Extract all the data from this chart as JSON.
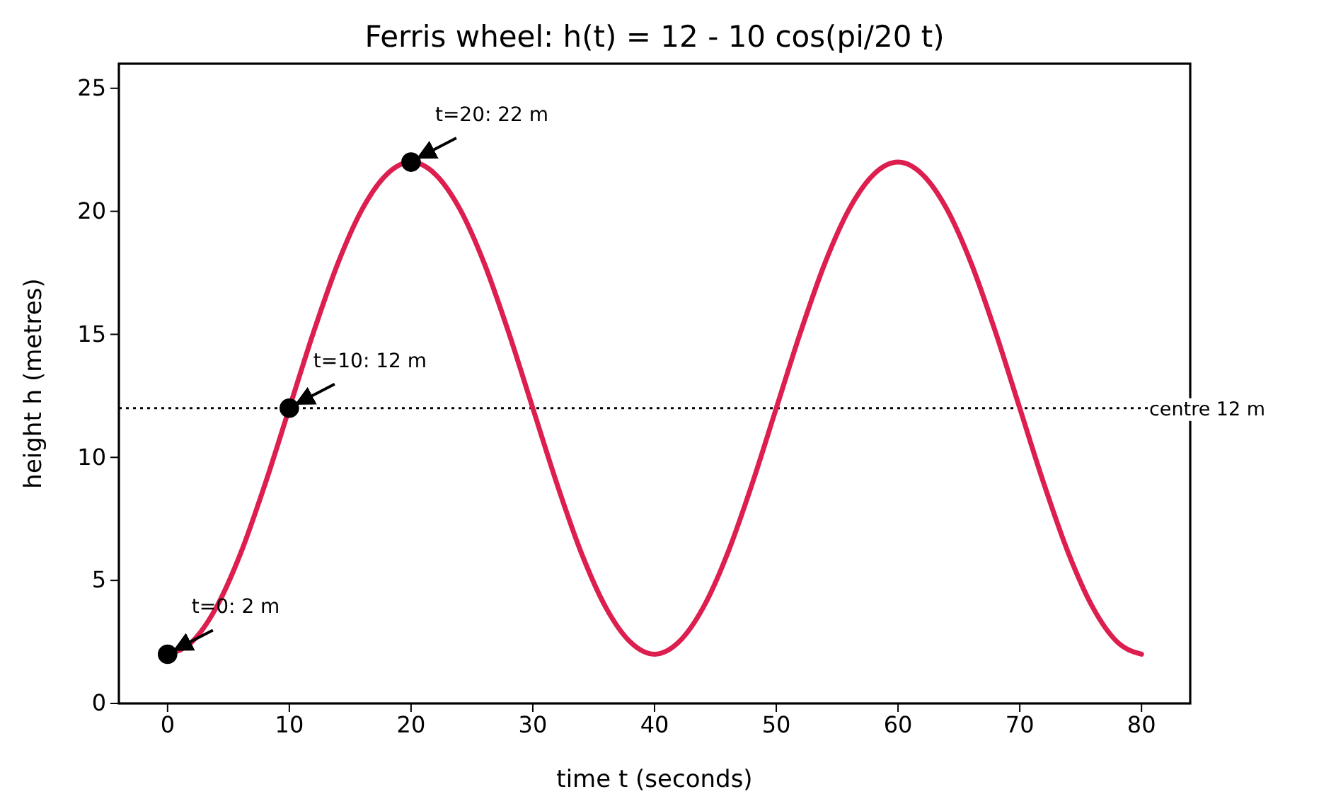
{
  "chart_data": {
    "type": "line",
    "title": "Ferris wheel: h(t) = 12 - 10 cos(pi/20 t)",
    "xlabel": "time t  (seconds)",
    "ylabel": "height h  (metres)",
    "xlim": [
      -4,
      84
    ],
    "ylim": [
      0,
      26
    ],
    "xticks": [
      0,
      10,
      20,
      30,
      40,
      50,
      60,
      70,
      80
    ],
    "yticks": [
      0,
      5,
      10,
      15,
      20,
      25
    ],
    "grid": false,
    "series": [
      {
        "color": "#dc1f4e",
        "marker": "none",
        "line_style": "solid",
        "x": [
          0,
          2,
          4,
          6,
          8,
          10,
          12,
          14,
          16,
          18,
          20,
          22,
          24,
          26,
          28,
          30,
          32,
          34,
          36,
          38,
          40,
          42,
          44,
          46,
          48,
          50,
          52,
          54,
          56,
          58,
          60,
          62,
          64,
          66,
          68,
          70,
          72,
          74,
          76,
          78,
          80
        ],
        "values": [
          2,
          2.5,
          3.9,
          6.1,
          8.9,
          12,
          15.1,
          17.9,
          20.1,
          21.5,
          22,
          21.5,
          20.1,
          17.9,
          15.1,
          12,
          8.9,
          6.1,
          3.9,
          2.5,
          2,
          2.5,
          3.9,
          6.1,
          8.9,
          12,
          15.1,
          17.9,
          20.1,
          21.5,
          22,
          21.5,
          20.1,
          17.9,
          15.1,
          12,
          8.9,
          6.1,
          3.9,
          2.5,
          2
        ]
      },
      {
        "type": "scatter",
        "color": "#000000",
        "marker": "circle",
        "x": [
          0,
          10,
          20
        ],
        "values": [
          2,
          12,
          22
        ]
      }
    ],
    "ref_lines": [
      {
        "axis": "y",
        "value": 12,
        "label": "centre 12 m",
        "color": "#000000",
        "line_style": "dotted"
      }
    ],
    "annotations": [
      {
        "text": "t=0: 2 m",
        "x": 0,
        "y": 2
      },
      {
        "text": "t=10: 12 m",
        "x": 10,
        "y": 12
      },
      {
        "text": "t=20: 22 m",
        "x": 20,
        "y": 22
      }
    ]
  }
}
